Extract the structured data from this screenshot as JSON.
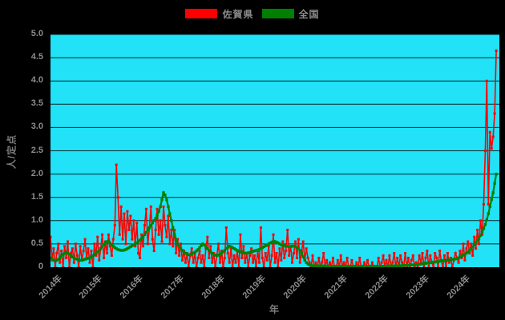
{
  "legend": {
    "items": [
      {
        "label": "佐賀県",
        "color": "#ff0000"
      },
      {
        "label": "全国",
        "color": "#008000"
      }
    ]
  },
  "axes": {
    "y_title": "人/定点",
    "x_title": "年",
    "y_ticks": [
      "5.0",
      "4.5",
      "4.0",
      "3.5",
      "3.0",
      "2.5",
      "2.0",
      "1.5",
      "1.0",
      "0.5",
      "0"
    ],
    "x_ticks": [
      "2014年",
      "2015年",
      "2016年",
      "2017年",
      "2018年",
      "2019年",
      "2020年",
      "2021年",
      "2022年",
      "2023年",
      "2024年"
    ]
  },
  "chart_data": {
    "type": "line",
    "title": "",
    "xlabel": "年",
    "ylabel": "人/定点",
    "xlim": [
      2014,
      2025
    ],
    "ylim": [
      0,
      5
    ],
    "x_start": 2014.0,
    "x_step": 0.038461,
    "grid": "horizontal",
    "grid_interval": 0.5,
    "legend_position": "top-center",
    "plot_bg_color": "#21e2f6",
    "page_bg_color": "#000000",
    "tick_label_color": "#8c8c8c",
    "series": [
      {
        "name": "佐賀県",
        "color": "#ff0000",
        "line_width": 1.6,
        "marker_size": 3,
        "values": [
          0.65,
          0.15,
          0.4,
          0,
          0.3,
          0.5,
          0.1,
          0.35,
          0,
          0.45,
          0.2,
          0.55,
          0,
          0.3,
          0.4,
          0.1,
          0.5,
          0.25,
          0,
          0.45,
          0.15,
          0.35,
          0.6,
          0.2,
          0.4,
          0.1,
          0.35,
          0,
          0.5,
          0.25,
          0.65,
          0.15,
          0.4,
          0.7,
          0.2,
          0.55,
          0.3,
          0.7,
          0.45,
          0.25,
          0.6,
          0.9,
          2.2,
          1.5,
          0.7,
          1.3,
          0.6,
          1.15,
          0.5,
          1.2,
          0.8,
          1.1,
          0.6,
          1.0,
          0.45,
          0.95,
          0.3,
          0.2,
          0.7,
          0.45,
          0.9,
          1.25,
          0.5,
          0.85,
          1.3,
          0.6,
          0.35,
          0.8,
          1.25,
          0.7,
          1.0,
          0.55,
          1.3,
          0.9,
          0.65,
          1.1,
          0.5,
          0.8,
          0.45,
          0.8,
          0.3,
          0.6,
          0.25,
          0.5,
          0.15,
          0.35,
          0.1,
          0.3,
          0,
          0.25,
          0.4,
          0.1,
          0.3,
          0,
          0.2,
          0.35,
          0.1,
          0.25,
          0,
          0.4,
          0.65,
          0.2,
          0.45,
          0.1,
          0.3,
          0,
          0.25,
          0.5,
          0.1,
          0.35,
          0,
          0.2,
          0.85,
          0.3,
          0.1,
          0.4,
          0,
          0.25,
          0.1,
          0.35,
          0,
          0.7,
          0.2,
          0.45,
          0.1,
          0.3,
          0,
          0.25,
          0.4,
          0.1,
          0.25,
          0,
          0.35,
          0.1,
          0.85,
          0.2,
          0,
          0.3,
          0.15,
          0.45,
          0,
          0.25,
          0.7,
          0.1,
          0.3,
          0,
          0.4,
          0.15,
          0.55,
          0.2,
          0.35,
          0.8,
          0.25,
          0.45,
          0.1,
          0.3,
          0.55,
          0.2,
          0.6,
          0.1,
          0.35,
          0.55,
          0.15,
          0.4,
          0.2,
          0.1,
          0,
          0.25,
          0,
          0.1,
          0,
          0.2,
          0,
          0.1,
          0.3,
          0,
          0.15,
          0,
          0.1,
          0,
          0.2,
          0,
          0,
          0.15,
          0,
          0.25,
          0,
          0.1,
          0,
          0.2,
          0,
          0,
          0.15,
          0,
          0,
          0.1,
          0,
          0.2,
          0,
          0,
          0.1,
          0,
          0.15,
          0,
          0,
          0.1,
          0,
          0,
          0,
          0.2,
          0,
          0.1,
          0.25,
          0,
          0.15,
          0,
          0.25,
          0,
          0.1,
          0.3,
          0,
          0.2,
          0,
          0.25,
          0.1,
          0,
          0.3,
          0,
          0.2,
          0,
          0.15,
          0.25,
          0,
          0.1,
          0,
          0.25,
          0.1,
          0.3,
          0,
          0.2,
          0.35,
          0,
          0.25,
          0.1,
          0,
          0.3,
          0.2,
          0,
          0.35,
          0.15,
          0,
          0.25,
          0,
          0.3,
          0.1,
          0.2,
          0,
          0.15,
          0.3,
          0.2,
          0.1,
          0.35,
          0.2,
          0.5,
          0.15,
          0.4,
          0.55,
          0.3,
          0.5,
          0.25,
          0.65,
          0.4,
          0.8,
          0.5,
          1.0,
          0.7,
          1.35,
          2.5,
          4.0,
          1.35,
          2.9,
          2.55,
          2.8,
          3.3,
          4.65
        ]
      },
      {
        "name": "全国",
        "color": "#008000",
        "line_width": 2.2,
        "marker_size": 3.4,
        "values": [
          0.2,
          0.18,
          0.15,
          0.14,
          0.15,
          0.17,
          0.2,
          0.24,
          0.28,
          0.3,
          0.32,
          0.3,
          0.28,
          0.25,
          0.22,
          0.2,
          0.18,
          0.17,
          0.16,
          0.15,
          0.15,
          0.16,
          0.17,
          0.18,
          0.19,
          0.2,
          0.22,
          0.24,
          0.27,
          0.3,
          0.33,
          0.36,
          0.4,
          0.44,
          0.48,
          0.52,
          0.55,
          0.55,
          0.52,
          0.48,
          0.45,
          0.42,
          0.4,
          0.38,
          0.37,
          0.36,
          0.36,
          0.37,
          0.38,
          0.4,
          0.42,
          0.44,
          0.46,
          0.48,
          0.5,
          0.52,
          0.55,
          0.58,
          0.62,
          0.66,
          0.7,
          0.75,
          0.8,
          0.85,
          0.9,
          0.95,
          1.0,
          1.05,
          1.12,
          1.2,
          1.3,
          1.45,
          1.6,
          1.55,
          1.45,
          1.3,
          1.15,
          1.0,
          0.85,
          0.7,
          0.6,
          0.5,
          0.45,
          0.4,
          0.36,
          0.33,
          0.3,
          0.28,
          0.27,
          0.27,
          0.28,
          0.3,
          0.32,
          0.35,
          0.38,
          0.42,
          0.46,
          0.5,
          0.48,
          0.45,
          0.4,
          0.36,
          0.32,
          0.3,
          0.28,
          0.26,
          0.25,
          0.26,
          0.28,
          0.3,
          0.33,
          0.36,
          0.4,
          0.43,
          0.45,
          0.44,
          0.42,
          0.4,
          0.38,
          0.36,
          0.34,
          0.33,
          0.32,
          0.31,
          0.3,
          0.3,
          0.31,
          0.32,
          0.33,
          0.34,
          0.35,
          0.36,
          0.37,
          0.38,
          0.4,
          0.42,
          0.44,
          0.46,
          0.48,
          0.5,
          0.52,
          0.54,
          0.55,
          0.55,
          0.54,
          0.52,
          0.5,
          0.48,
          0.47,
          0.46,
          0.45,
          0.45,
          0.44,
          0.44,
          0.45,
          0.45,
          0.44,
          0.42,
          0.4,
          0.36,
          0.3,
          0.22,
          0.15,
          0.1,
          0.07,
          0.05,
          0.04,
          0.03,
          0.03,
          0.03,
          0.03,
          0.03,
          0.03,
          0.03,
          0.03,
          0.02,
          0.02,
          0.02,
          0.02,
          0.02,
          0.02,
          0.02,
          0.02,
          0.02,
          0.02,
          0.02,
          0.02,
          0.02,
          0.02,
          0.02,
          0.02,
          0.02,
          0.02,
          0.02,
          0.02,
          0.02,
          0.02,
          0.02,
          0.02,
          0.02,
          0.02,
          0.02,
          0.02,
          0.02,
          0.02,
          0.02,
          0.02,
          0.02,
          0.02,
          0.02,
          0.02,
          0.02,
          0.02,
          0.02,
          0.02,
          0.02,
          0.03,
          0.03,
          0.03,
          0.03,
          0.03,
          0.03,
          0.03,
          0.03,
          0.04,
          0.04,
          0.04,
          0.04,
          0.04,
          0.05,
          0.05,
          0.05,
          0.05,
          0.05,
          0.06,
          0.06,
          0.07,
          0.07,
          0.08,
          0.08,
          0.09,
          0.09,
          0.1,
          0.1,
          0.11,
          0.11,
          0.12,
          0.12,
          0.13,
          0.13,
          0.14,
          0.14,
          0.15,
          0.15,
          0.16,
          0.16,
          0.17,
          0.17,
          0.18,
          0.18,
          0.2,
          0.22,
          0.24,
          0.26,
          0.28,
          0.3,
          0.33,
          0.36,
          0.4,
          0.44,
          0.48,
          0.52,
          0.57,
          0.62,
          0.68,
          0.75,
          0.83,
          0.92,
          1.02,
          1.15,
          1.3,
          1.45,
          1.6,
          1.8,
          2.0
        ]
      }
    ]
  }
}
